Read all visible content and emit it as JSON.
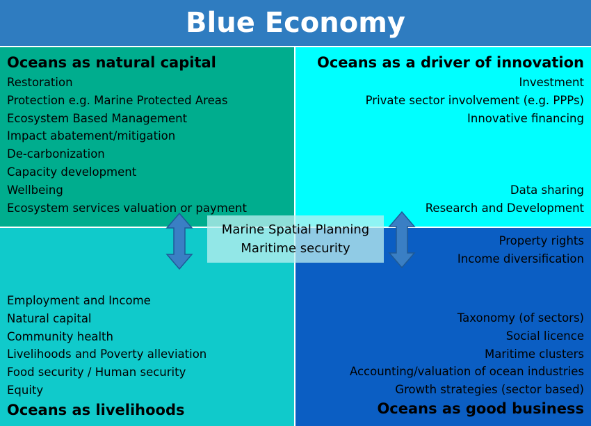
{
  "title": "Blue Economy",
  "colors": {
    "banner": "#2f7cc0",
    "natural_capital": "#00ad8e",
    "innovation": "#00ffff",
    "livelihoods": "#10cacb",
    "business": "#0b5ec3",
    "arrow": "#3a7fc4"
  },
  "natural_capital": {
    "heading": "Oceans as natural capital",
    "items": [
      "Restoration",
      "Protection e.g. Marine Protected Areas",
      "Ecosystem Based Management",
      "Impact abatement/mitigation",
      "De-carbonization",
      "Capacity development",
      "Wellbeing",
      "Ecosystem services valuation or payment"
    ]
  },
  "innovation": {
    "heading": "Oceans as a driver of innovation",
    "items_top": [
      "Investment",
      "Private sector involvement (e.g. PPPs)",
      "Innovative financing"
    ],
    "items_bottom": [
      "Data sharing",
      "Research and Development"
    ]
  },
  "livelihoods": {
    "heading": "Oceans as livelihoods",
    "items": [
      "Employment and Income",
      "Natural capital",
      "Community health",
      "Livelihoods and Poverty alleviation",
      "Food security / Human security",
      "Equity"
    ]
  },
  "business": {
    "heading": "Oceans as good business",
    "items_top": [
      "Property rights",
      "Income diversification"
    ],
    "items_bottom": [
      "Taxonomy (of sectors)",
      "Social licence",
      "Maritime clusters",
      "Accounting/valuation of ocean industries",
      "Growth strategies (sector based)"
    ]
  },
  "center": {
    "line1": "Marine Spatial Planning",
    "line2": "Maritime security"
  }
}
